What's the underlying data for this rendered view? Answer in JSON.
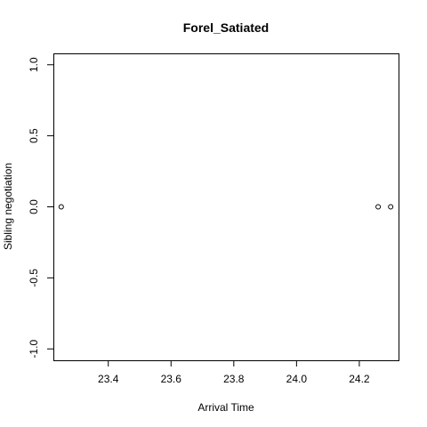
{
  "chart_data": {
    "type": "scatter",
    "title": "Forel_Satiated",
    "xlabel": "Arrival Time",
    "ylabel": "Sibling negotiation",
    "xlim": [
      23.225,
      24.325
    ],
    "ylim": [
      -1.08,
      1.08
    ],
    "xticks": [
      23.4,
      23.6,
      23.8,
      24.0,
      24.2
    ],
    "xtick_labels": [
      "23.4",
      "23.6",
      "23.8",
      "24.0",
      "24.2"
    ],
    "yticks": [
      -1.0,
      -0.5,
      0.0,
      0.5,
      1.0
    ],
    "ytick_labels": [
      "-1.0",
      "-0.5",
      "0.0",
      "0.5",
      "1.0"
    ],
    "x": [
      23.25,
      24.26,
      24.3
    ],
    "y": [
      0.0,
      0.0,
      0.0
    ],
    "marker": "open-circle",
    "grid": false,
    "legend": "none",
    "colors": {
      "points": "#000000",
      "axes": "#000000",
      "background": "#ffffff"
    }
  }
}
